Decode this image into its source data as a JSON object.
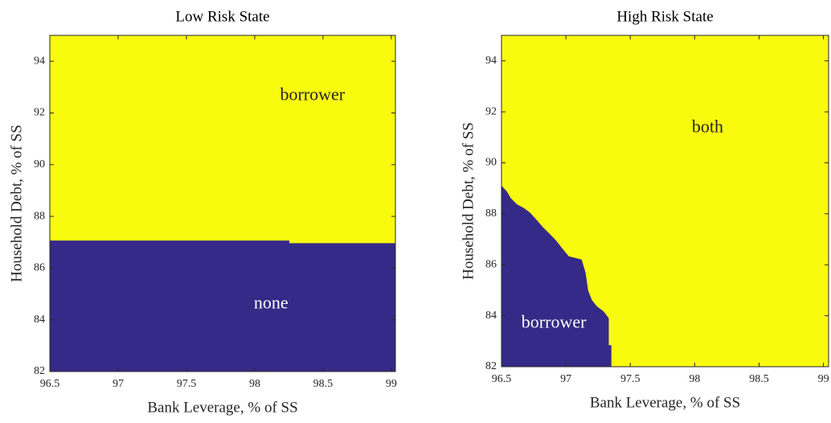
{
  "chart_data": [
    {
      "type": "region",
      "title": "Low Risk State",
      "x_label": "Bank Leverage, % of SS",
      "y_label": "Household Debt, % of SS",
      "xlim": [
        96.5,
        99.03
      ],
      "ylim": [
        82,
        95
      ],
      "xticks": [
        96.5,
        97,
        97.5,
        98,
        98.5,
        99
      ],
      "yticks": [
        82,
        84,
        86,
        88,
        90,
        92,
        94
      ],
      "above": {
        "name": "borrower",
        "color": "#f9fb0e"
      },
      "below": {
        "name": "none",
        "color": "#352a87"
      },
      "boundary": {
        "x": [
          96.5,
          98.25,
          98.25,
          99.03
        ],
        "y": [
          87.05,
          87.05,
          86.95,
          86.95
        ]
      }
    },
    {
      "type": "region",
      "title": "High Risk State",
      "x_label": "Bank Leverage, % of SS",
      "y_label": "Household Debt, % of SS",
      "xlim": [
        96.5,
        99.04
      ],
      "ylim": [
        82,
        95
      ],
      "xticks": [
        96.5,
        97,
        97.5,
        98,
        98.5,
        99
      ],
      "yticks": [
        82,
        84,
        86,
        88,
        90,
        92,
        94
      ],
      "above": {
        "name": "both",
        "color": "#f9fb0e"
      },
      "below": {
        "name": "borrower",
        "color": "#352a87"
      },
      "boundary": {
        "x": [
          96.5,
          96.54,
          96.57,
          96.62,
          96.67,
          96.72,
          96.77,
          96.82,
          96.87,
          96.92,
          96.97,
          97.02,
          97.12,
          97.15,
          97.17,
          97.2,
          97.24,
          97.29,
          97.33,
          97.33,
          97.35,
          97.35
        ],
        "y": [
          89.08,
          88.86,
          88.6,
          88.35,
          88.22,
          88.03,
          87.75,
          87.46,
          87.21,
          86.95,
          86.63,
          86.32,
          86.19,
          85.68,
          84.98,
          84.6,
          84.35,
          84.16,
          83.9,
          82.83,
          82.83,
          82
        ]
      }
    }
  ]
}
